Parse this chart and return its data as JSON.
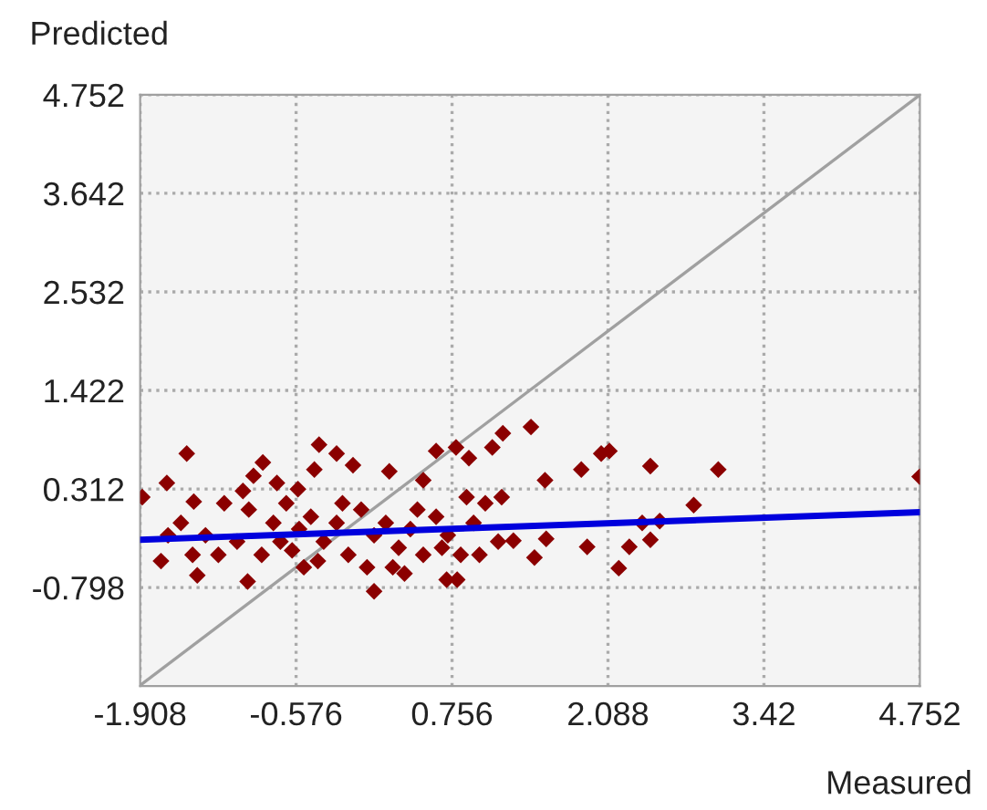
{
  "chart_data": {
    "type": "scatter",
    "xlabel": "Measured",
    "ylabel": "Predicted",
    "xlim": [
      -1.908,
      4.752
    ],
    "ylim": [
      -1.908,
      4.752
    ],
    "xticks": [
      -1.908,
      -0.576,
      0.756,
      2.088,
      3.42,
      4.752
    ],
    "yticks": [
      -0.798,
      0.312,
      1.422,
      2.532,
      3.642,
      4.752
    ],
    "grid": true,
    "series": [
      {
        "marker": "diamond",
        "color": "#8b0000",
        "x": [
          -1.89,
          -1.51,
          -1.68,
          -1.45,
          -1.73,
          -1.42,
          -0.99,
          -0.94,
          -0.86,
          -0.38,
          -0.23,
          -0.42,
          -0.09,
          0.22,
          0.09,
          0.35,
          0.62,
          0.79,
          0.9,
          1.1,
          1.19,
          1.43,
          1.55,
          1.86,
          2.03,
          2.1,
          2.45,
          3.03,
          4.75,
          2.82,
          2.38,
          2.53,
          2.45,
          2.27,
          2.18,
          1.91,
          1.56,
          1.46,
          1.28,
          1.18,
          0.8,
          0.71,
          0.51,
          -0.56,
          -0.74,
          -0.61,
          -0.51,
          -1.56,
          -1.35,
          -1.19,
          -1.08,
          -0.98,
          -0.87,
          -0.77,
          -0.66,
          -0.45,
          -0.34,
          -0.23,
          -0.13,
          -0.02,
          0.09,
          0.19,
          0.3,
          0.4,
          0.51,
          0.62,
          0.72,
          0.83,
          0.94,
          1.04,
          1.15,
          -1.24,
          -1.67,
          -1.46,
          -1.03,
          -0.71,
          -0.55,
          -0.39,
          -0.18,
          0.03,
          0.25,
          0.46,
          0.67,
          0.88,
          0.99
        ],
        "values": [
          0.22,
          0.71,
          0.38,
          0.17,
          -0.5,
          -0.66,
          -0.73,
          0.46,
          0.61,
          0.81,
          0.71,
          0.53,
          0.58,
          0.51,
          -0.84,
          -0.64,
          0.74,
          0.78,
          0.66,
          0.78,
          0.94,
          1.01,
          0.41,
          0.53,
          0.71,
          0.74,
          0.57,
          0.53,
          0.45,
          0.13,
          -0.07,
          -0.05,
          -0.26,
          -0.34,
          -0.58,
          -0.34,
          -0.25,
          -0.46,
          -0.27,
          0.22,
          -0.71,
          -0.71,
          0.41,
          0.31,
          0.38,
          -0.38,
          -0.57,
          -0.07,
          -0.21,
          0.15,
          -0.28,
          0.08,
          -0.43,
          -0.07,
          0.15,
          0,
          -0.28,
          -0.07,
          -0.43,
          0.08,
          -0.21,
          -0.07,
          -0.35,
          -0.14,
          -0.43,
          0,
          -0.21,
          -0.43,
          -0.07,
          0.15,
          -0.28,
          -0.43,
          -0.21,
          -0.43,
          0.29,
          -0.28,
          -0.14,
          -0.5,
          0.15,
          -0.57,
          -0.57,
          0.08,
          -0.35,
          0.22,
          -0.43
        ]
      },
      {
        "type": "line",
        "color": "#a0a0a0",
        "x": [
          -1.908,
          4.752
        ],
        "values": [
          -1.9,
          4.75
        ]
      },
      {
        "type": "line",
        "color": "#0000dd",
        "x": [
          -1.908,
          4.752
        ],
        "values": [
          -0.26,
          0.05
        ]
      }
    ]
  }
}
